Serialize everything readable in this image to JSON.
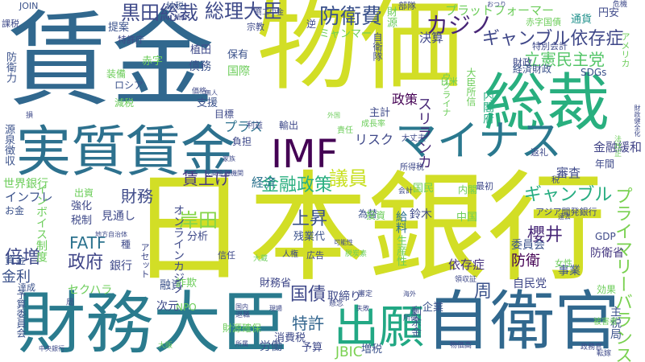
{
  "words": [
    {
      "text": "日本銀行",
      "color": "#d2de26"
    },
    {
      "text": "物価",
      "color": "#d2de26"
    },
    {
      "text": "賃金",
      "color": "#31688e"
    },
    {
      "text": "総裁",
      "color": "#29af7f"
    },
    {
      "text": "財務大臣",
      "color": "#2a7b8e"
    },
    {
      "text": "実質賃金",
      "color": "#2d718e"
    },
    {
      "text": "自衛官",
      "color": "#31688e"
    },
    {
      "text": "出願",
      "color": "#22a884"
    },
    {
      "text": "IMF",
      "color": "#440154"
    },
    {
      "text": "マイナス",
      "color": "#2a788e"
    },
    {
      "text": "防衛費",
      "color": "#3b528b"
    },
    {
      "text": "総理大臣",
      "color": "#3e4a89"
    },
    {
      "text": "黒田総裁",
      "color": "#3e4989"
    },
    {
      "text": "カジノ",
      "color": "#482677"
    },
    {
      "text": "ギャンブル依存症",
      "color": "#3f4788"
    },
    {
      "text": "立憲民主党",
      "color": "#54c568"
    },
    {
      "text": "プラットフォーマー",
      "color": "#6ccd5a"
    },
    {
      "text": "プライマリーバランス",
      "color": "#7ad151"
    },
    {
      "text": "ギャンブル",
      "color": "#27ad81"
    },
    {
      "text": "金融政策",
      "color": "#29af7f"
    },
    {
      "text": "岸田",
      "color": "#86d549"
    },
    {
      "text": "財務",
      "color": "#3e4a89"
    },
    {
      "text": "上昇",
      "color": "#3b528b"
    },
    {
      "text": "政府",
      "color": "#404688"
    },
    {
      "text": "FATF",
      "color": "#2c728e"
    },
    {
      "text": "櫻井",
      "color": "#482878"
    },
    {
      "text": "倍増",
      "color": "#3e4989"
    },
    {
      "text": "国債",
      "color": "#3f4889"
    },
    {
      "text": "特許",
      "color": "#32658e"
    },
    {
      "text": "JBIC",
      "color": "#7ad151"
    },
    {
      "text": "議員",
      "color": "#c8e020"
    },
    {
      "text": "政策",
      "color": "#440154"
    },
    {
      "text": "スリランカ",
      "color": "#482878"
    },
    {
      "text": "金融緩和",
      "color": "#414487"
    },
    {
      "text": "決算",
      "color": "#3f4788"
    },
    {
      "text": "審査",
      "color": "#3e4989"
    },
    {
      "text": "防衛",
      "color": "#440154"
    },
    {
      "text": "依存症",
      "color": "#46327e"
    },
    {
      "text": "賃上げ",
      "color": "#453781"
    },
    {
      "text": "プラス",
      "color": "#2c718e"
    },
    {
      "text": "リスク",
      "color": "#3f4889"
    },
    {
      "text": "経済",
      "color": "#2c728e"
    },
    {
      "text": "インフレ",
      "color": "#3b528b"
    },
    {
      "text": "金利",
      "color": "#3b528b"
    },
    {
      "text": "資金",
      "color": "#3b528b"
    },
    {
      "text": "世界銀行",
      "color": "#6ccd5a"
    },
    {
      "text": "財政",
      "color": "#3e4989"
    },
    {
      "text": "事業",
      "color": "#3b528b"
    },
    {
      "text": "通貨",
      "color": "#21918c"
    },
    {
      "text": "円安",
      "color": "#3e4989"
    },
    {
      "text": "内閣府",
      "color": "#27ad81"
    },
    {
      "text": "自民党",
      "color": "#3f4788"
    },
    {
      "text": "防衛省",
      "color": "#453781"
    },
    {
      "text": "分析",
      "color": "#3e4989"
    },
    {
      "text": "銀行",
      "color": "#3e4989"
    },
    {
      "text": "強化",
      "color": "#3e4989"
    },
    {
      "text": "税制",
      "color": "#3e4989"
    },
    {
      "text": "見通し",
      "color": "#3e4989"
    },
    {
      "text": "委員会",
      "color": "#3b528b"
    },
    {
      "text": "国民",
      "color": "#6ccd5a"
    },
    {
      "text": "中国",
      "color": "#6ccd5a"
    },
    {
      "text": "鈴木",
      "color": "#3e4989"
    },
    {
      "text": "為替",
      "color": "#3b528b"
    },
    {
      "text": "投資",
      "color": "#6ccd5a"
    },
    {
      "text": "GDP",
      "color": "#3e4989"
    },
    {
      "text": "債務",
      "color": "#3b528b"
    },
    {
      "text": "国際",
      "color": "#6ccd5a"
    },
    {
      "text": "赤字",
      "color": "#6ccd5a"
    },
    {
      "text": "提案",
      "color": "#3b528b"
    },
    {
      "text": "支援",
      "color": "#3b528b"
    },
    {
      "text": "輸出",
      "color": "#3e4989"
    },
    {
      "text": "主計",
      "color": "#3e4989"
    },
    {
      "text": "給料",
      "color": "#2c728e"
    },
    {
      "text": "経済財政",
      "color": "#3b528b"
    },
    {
      "text": "SDGs",
      "color": "#3b528b"
    },
    {
      "text": "財務省",
      "color": "#3f4788"
    },
    {
      "text": "取締り",
      "color": "#3e4989"
    },
    {
      "text": "企業",
      "color": "#3b528b"
    },
    {
      "text": "周",
      "color": "#3b528b"
    },
    {
      "text": "NPO",
      "color": "#6ccd5a"
    },
    {
      "text": "次元",
      "color": "#3e4989"
    },
    {
      "text": "融資",
      "color": "#3b528b"
    },
    {
      "text": "詐欺",
      "color": "#6ccd5a"
    },
    {
      "text": "予算",
      "color": "#3e4989"
    },
    {
      "text": "増税",
      "color": "#3b528b"
    },
    {
      "text": "労働",
      "color": "#3b528b"
    },
    {
      "text": "消費税",
      "color": "#3e4989"
    },
    {
      "text": "財源確保",
      "color": "#6ccd5a"
    },
    {
      "text": "残業代",
      "color": "#3b528b"
    },
    {
      "text": "ロシア",
      "color": "#3b528b"
    },
    {
      "text": "装備",
      "color": "#6ccd5a"
    },
    {
      "text": "減税",
      "color": "#6ccd5a"
    },
    {
      "text": "植田",
      "color": "#3e4989"
    },
    {
      "text": "保有",
      "color": "#3b528b"
    },
    {
      "text": "JOIN",
      "color": "#3b528b"
    },
    {
      "text": "納税",
      "color": "#3b528b"
    },
    {
      "text": "特許庁",
      "color": "#3e4989"
    },
    {
      "text": "課税",
      "color": "#3e4989"
    },
    {
      "text": "部隊",
      "color": "#3e4989"
    },
    {
      "text": "財源",
      "color": "#6ccd5a"
    },
    {
      "text": "ミャンマー",
      "color": "#6ccd5a"
    },
    {
      "text": "逆",
      "color": "#3e4989"
    },
    {
      "text": "赤字国債",
      "color": "#6ccd5a"
    },
    {
      "text": "特別会計",
      "color": "#3e4989"
    },
    {
      "text": "アジア開発銀行",
      "color": "#3e4989"
    },
    {
      "text": "効果",
      "color": "#6ccd5a"
    },
    {
      "text": "女性",
      "color": "#6ccd5a"
    },
    {
      "text": "年間",
      "color": "#3e4989"
    },
    {
      "text": "最初",
      "color": "#3e4989"
    },
    {
      "text": "返礼",
      "color": "#3e4989"
    },
    {
      "text": "所得税",
      "color": "#3e4989"
    },
    {
      "text": "会計",
      "color": "#3e4989"
    },
    {
      "text": "内閣",
      "color": "#6ccd5a"
    },
    {
      "text": "日米",
      "color": "#6ccd5a"
    },
    {
      "text": "成長率",
      "color": "#6ccd5a"
    },
    {
      "text": "大丈夫",
      "color": "#3e4989"
    },
    {
      "text": "利益",
      "color": "#3e4989"
    },
    {
      "text": "目標",
      "color": "#3e4989"
    },
    {
      "text": "責任",
      "color": "#6ccd5a"
    },
    {
      "text": "負担",
      "color": "#3e4989"
    },
    {
      "text": "種",
      "color": "#3e4989"
    },
    {
      "text": "出資",
      "color": "#6ccd5a"
    },
    {
      "text": "信任",
      "color": "#3e4989"
    },
    {
      "text": "人権",
      "color": "#3e4989"
    },
    {
      "text": "広告",
      "color": "#3e4989"
    },
    {
      "text": "大蔵",
      "color": "#6ccd5a"
    },
    {
      "text": "お金",
      "color": "#3b528b"
    },
    {
      "text": "防衛力",
      "color": "#3b528b"
    },
    {
      "text": "源泉徴収",
      "color": "#3b528b"
    },
    {
      "text": "予算委員会",
      "color": "#3b528b"
    },
    {
      "text": "インボイス制度",
      "color": "#6ccd5a"
    },
    {
      "text": "オンラインカジノ",
      "color": "#3e4989"
    },
    {
      "text": "セクハラ",
      "color": "#6ccd5a"
    },
    {
      "text": "ウクライナ",
      "color": "#6ccd5a"
    },
    {
      "text": "大臣所信",
      "color": "#6ccd5a"
    },
    {
      "text": "自衛隊",
      "color": "#3e4989"
    },
    {
      "text": "アメリカ",
      "color": "#6ccd5a"
    },
    {
      "text": "生産性",
      "color": "#6ccd5a"
    },
    {
      "text": "剰余金",
      "color": "#3b528b"
    },
    {
      "text": "主税局",
      "color": "#3b528b"
    },
    {
      "text": "アセット",
      "color": "#3e4989"
    },
    {
      "text": "達成",
      "color": "#3b528b"
    },
    {
      "text": "局",
      "color": "#3e4989"
    },
    {
      "text": "宗教",
      "color": "#3e4989"
    },
    {
      "text": "商工中金",
      "color": "#3e4989"
    },
    {
      "text": "危機",
      "color": "#3e4989"
    },
    {
      "text": "法改正",
      "color": "#6ccd5a"
    },
    {
      "text": "財政健全化",
      "color": "#3e4989"
    },
    {
      "text": "政務官",
      "color": "#3e4989"
    },
    {
      "text": "転嫁",
      "color": "#3e4989"
    },
    {
      "text": "物価高",
      "color": "#3e4989"
    },
    {
      "text": "被害者",
      "color": "#6ccd5a"
    },
    {
      "text": "領収証",
      "color": "#3e4989"
    },
    {
      "text": "所得",
      "color": "#3b528b"
    },
    {
      "text": "遠去",
      "color": "#3e4989"
    },
    {
      "text": "傾向",
      "color": "#3e4989"
    },
    {
      "text": "外国",
      "color": "#6ccd5a"
    },
    {
      "text": "懸念",
      "color": "#3e4989"
    },
    {
      "text": "海外",
      "color": "#3e4989"
    },
    {
      "text": "審定",
      "color": "#3e4989"
    },
    {
      "text": "失敗",
      "color": "#3e4989"
    },
    {
      "text": "大阪",
      "color": "#6ccd5a"
    },
    {
      "text": "退職",
      "color": "#3e4989"
    },
    {
      "text": "所属",
      "color": "#3e4989"
    },
    {
      "text": "国内",
      "color": "#3e4989"
    },
    {
      "text": "現場",
      "color": "#3e4989"
    },
    {
      "text": "家族",
      "color": "#3e4989"
    },
    {
      "text": "可能性",
      "color": "#3e4989"
    },
    {
      "text": "脱炭素",
      "color": "#6ccd5a"
    },
    {
      "text": "地方自治体",
      "color": "#3e4989"
    },
    {
      "text": "税",
      "color": "#3e4989"
    },
    {
      "text": "損",
      "color": "#3e4989"
    },
    {
      "text": "価格",
      "color": "#3e4989"
    },
    {
      "text": "無人",
      "color": "#3e4989"
    },
    {
      "text": "おつり",
      "color": "#3e4989"
    },
    {
      "text": "中央銀行",
      "color": "#3e4989"
    },
    {
      "text": "民間金融機関",
      "color": "#3e4989"
    }
  ]
}
